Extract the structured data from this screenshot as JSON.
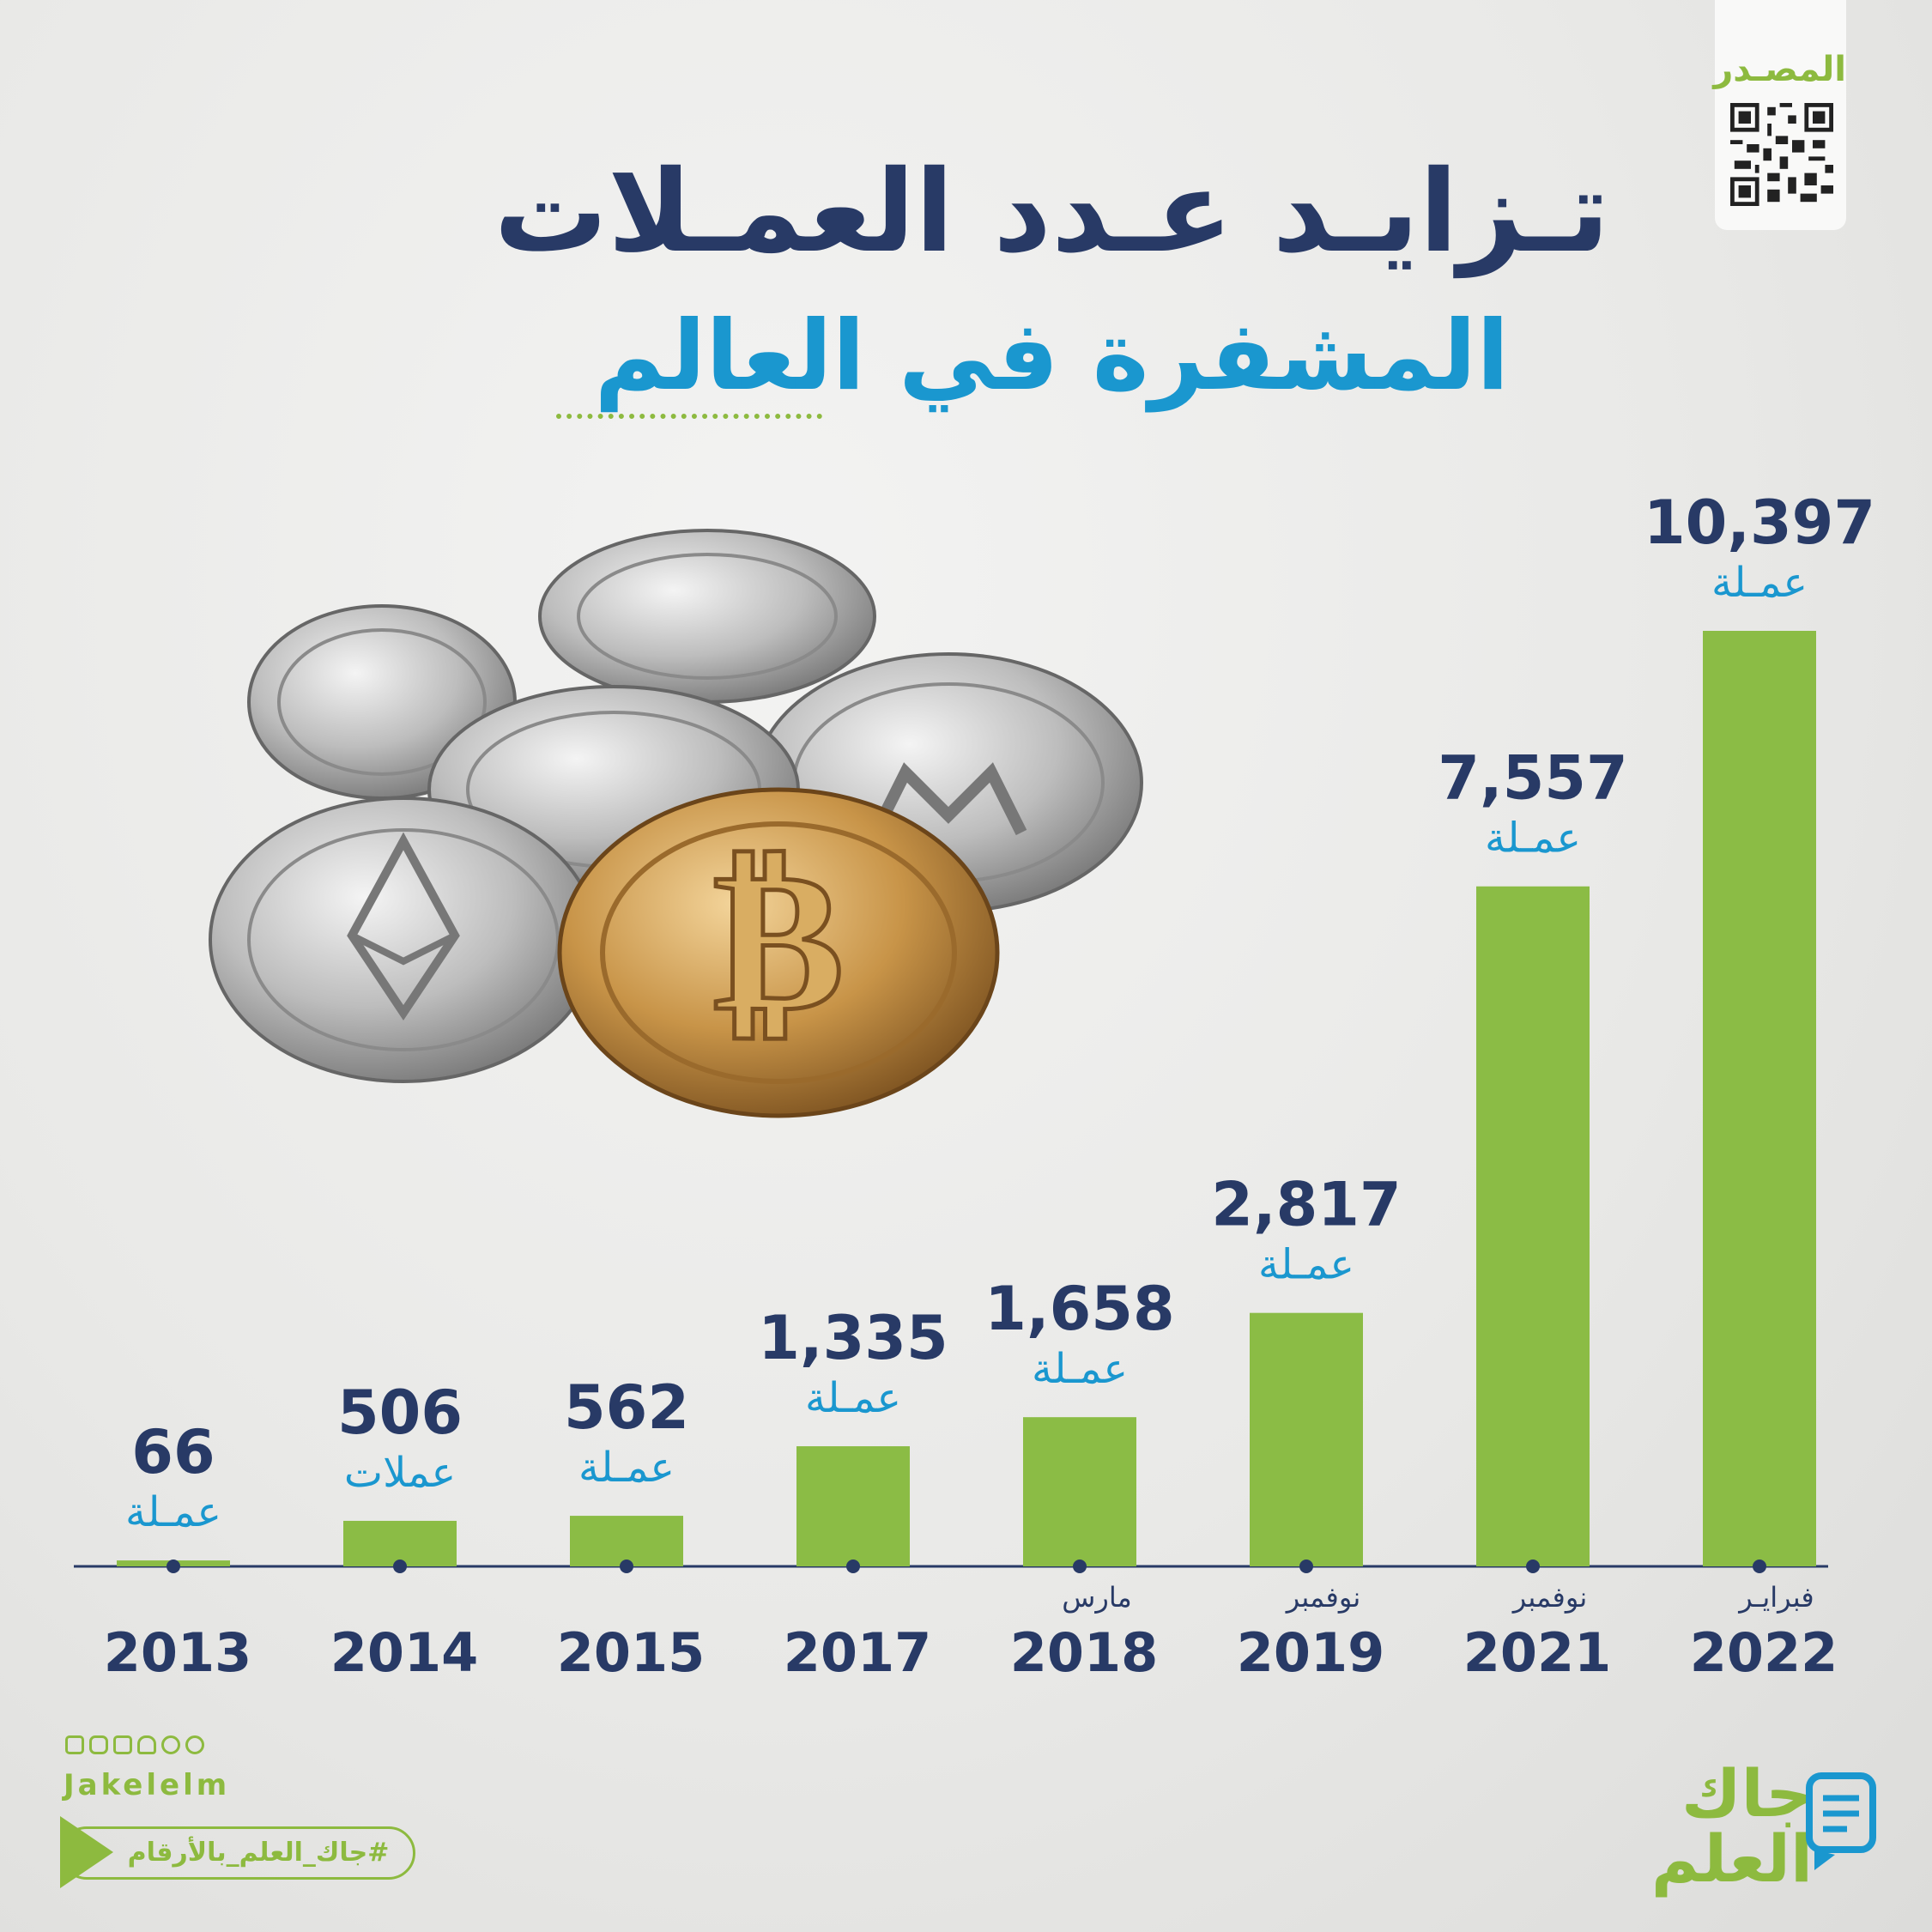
{
  "header": {
    "title": "تـزايـد عـدد العمـلات",
    "subtitle": "المشفرة في العالم"
  },
  "source": {
    "label": "المصـدر"
  },
  "chart_data": {
    "type": "bar",
    "title": "تـزايـد عـدد العمـلات المشفرة في العالم",
    "categories": [
      "2013",
      "2014",
      "2015",
      "2017",
      "2018",
      "2019",
      "2021",
      "2022"
    ],
    "month_labels": [
      "",
      "",
      "",
      "",
      "مارس",
      "نوفمبر",
      "نوفمبر",
      "فبرايـر"
    ],
    "values": [
      66,
      506,
      562,
      1335,
      1658,
      2817,
      7557,
      10397
    ],
    "value_labels": [
      "66",
      "506",
      "562",
      "1,335",
      "1,658",
      "2,817",
      "7,557",
      "10,397"
    ],
    "unit_labels": [
      "عمـلة",
      "عملات",
      "عمـلة",
      "عمـلة",
      "عمـلة",
      "عمـلة",
      "عمـلة",
      "عمـلة"
    ],
    "ylim": [
      0,
      10397
    ],
    "grid": false,
    "colors": {
      "bar": "#8bbc45",
      "value": "#283a66",
      "unit": "#1a97cf",
      "year": "#283a66",
      "month": "#283a66",
      "axis": "#283a66"
    }
  },
  "footer": {
    "handle": "Jakelelm",
    "hashtag": "#جاك_العلم_بالأرقام",
    "logo_line1": "جاك",
    "logo_line2": "العلم",
    "social_icons": [
      "facebook-icon",
      "instagram-icon",
      "linkedin-icon",
      "snapchat-icon",
      "twitter-icon",
      "telegram-icon"
    ]
  }
}
